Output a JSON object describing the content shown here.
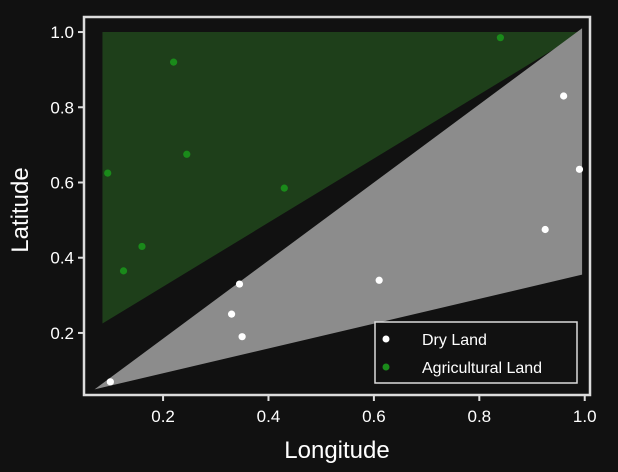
{
  "chart_data": {
    "type": "scatter",
    "xlabel": "Longitude",
    "ylabel": "Latitude",
    "xlim": [
      0.05,
      1.01
    ],
    "ylim": [
      0.035,
      1.04
    ],
    "xticks": [
      0.2,
      0.4,
      0.6,
      0.8,
      1.0
    ],
    "xtick_labels": [
      "0.2",
      "0.4",
      "0.6",
      "0.8",
      "1.0"
    ],
    "yticks": [
      0.2,
      0.4,
      0.6,
      0.8,
      1.0
    ],
    "ytick_labels": [
      "0.2",
      "0.4",
      "0.6",
      "0.8",
      "1.0"
    ],
    "grid": false,
    "legend_position": "bottom-right",
    "regions": [
      {
        "name": "Agricultural Land",
        "color": "#1e3f1a",
        "polygon": [
          [
            0.085,
            1.0
          ],
          [
            0.995,
            1.0
          ],
          [
            0.085,
            0.225
          ]
        ]
      },
      {
        "name": "Dry Land",
        "color": "#8c8c8c",
        "polygon": [
          [
            0.995,
            1.01
          ],
          [
            0.995,
            0.355
          ],
          [
            0.07,
            0.05
          ]
        ]
      }
    ],
    "series": [
      {
        "name": "Dry Land",
        "color": "#ffffff",
        "points": [
          {
            "x": 0.1,
            "y": 0.07
          },
          {
            "x": 0.33,
            "y": 0.25
          },
          {
            "x": 0.345,
            "y": 0.33
          },
          {
            "x": 0.35,
            "y": 0.19
          },
          {
            "x": 0.61,
            "y": 0.34
          },
          {
            "x": 0.925,
            "y": 0.475
          },
          {
            "x": 0.96,
            "y": 0.83
          },
          {
            "x": 0.99,
            "y": 0.635
          }
        ]
      },
      {
        "name": "Agricultural Land",
        "color": "#1a8a1a",
        "points": [
          {
            "x": 0.095,
            "y": 0.625
          },
          {
            "x": 0.125,
            "y": 0.365
          },
          {
            "x": 0.16,
            "y": 0.43
          },
          {
            "x": 0.22,
            "y": 0.92
          },
          {
            "x": 0.245,
            "y": 0.675
          },
          {
            "x": 0.43,
            "y": 0.585
          },
          {
            "x": 0.84,
            "y": 0.985
          }
        ]
      }
    ]
  }
}
